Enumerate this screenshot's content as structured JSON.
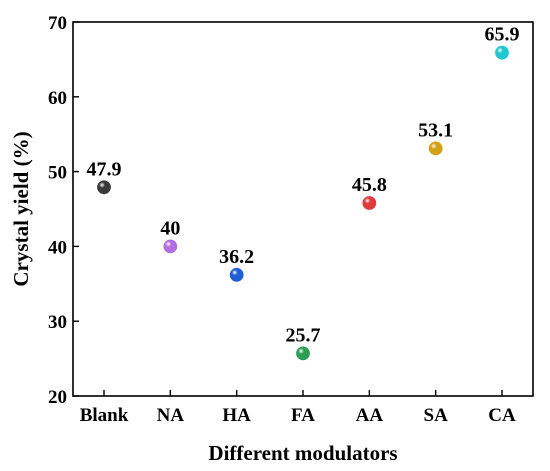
{
  "chart_data": {
    "type": "scatter",
    "title": "",
    "xlabel": "Different modulators",
    "ylabel": "Crystal yield (%)",
    "categories": [
      "Blank",
      "NA",
      "HA",
      "FA",
      "AA",
      "SA",
      "CA"
    ],
    "values": [
      47.9,
      40,
      36.2,
      25.7,
      45.8,
      53.1,
      65.9
    ],
    "value_labels": [
      "47.9",
      "40",
      "36.2",
      "25.7",
      "45.8",
      "53.1",
      "65.9"
    ],
    "colors": [
      "#3a3a3a",
      "#b36ee0",
      "#1f5fd6",
      "#2e9e55",
      "#e03a3a",
      "#d4a017",
      "#1fc8cf"
    ],
    "ylim": [
      20,
      70
    ],
    "yticks": [
      20,
      30,
      40,
      50,
      60,
      70
    ],
    "ytick_labels": [
      "20",
      "30",
      "40",
      "50",
      "60",
      "70"
    ],
    "grid": false,
    "legend": "none"
  }
}
